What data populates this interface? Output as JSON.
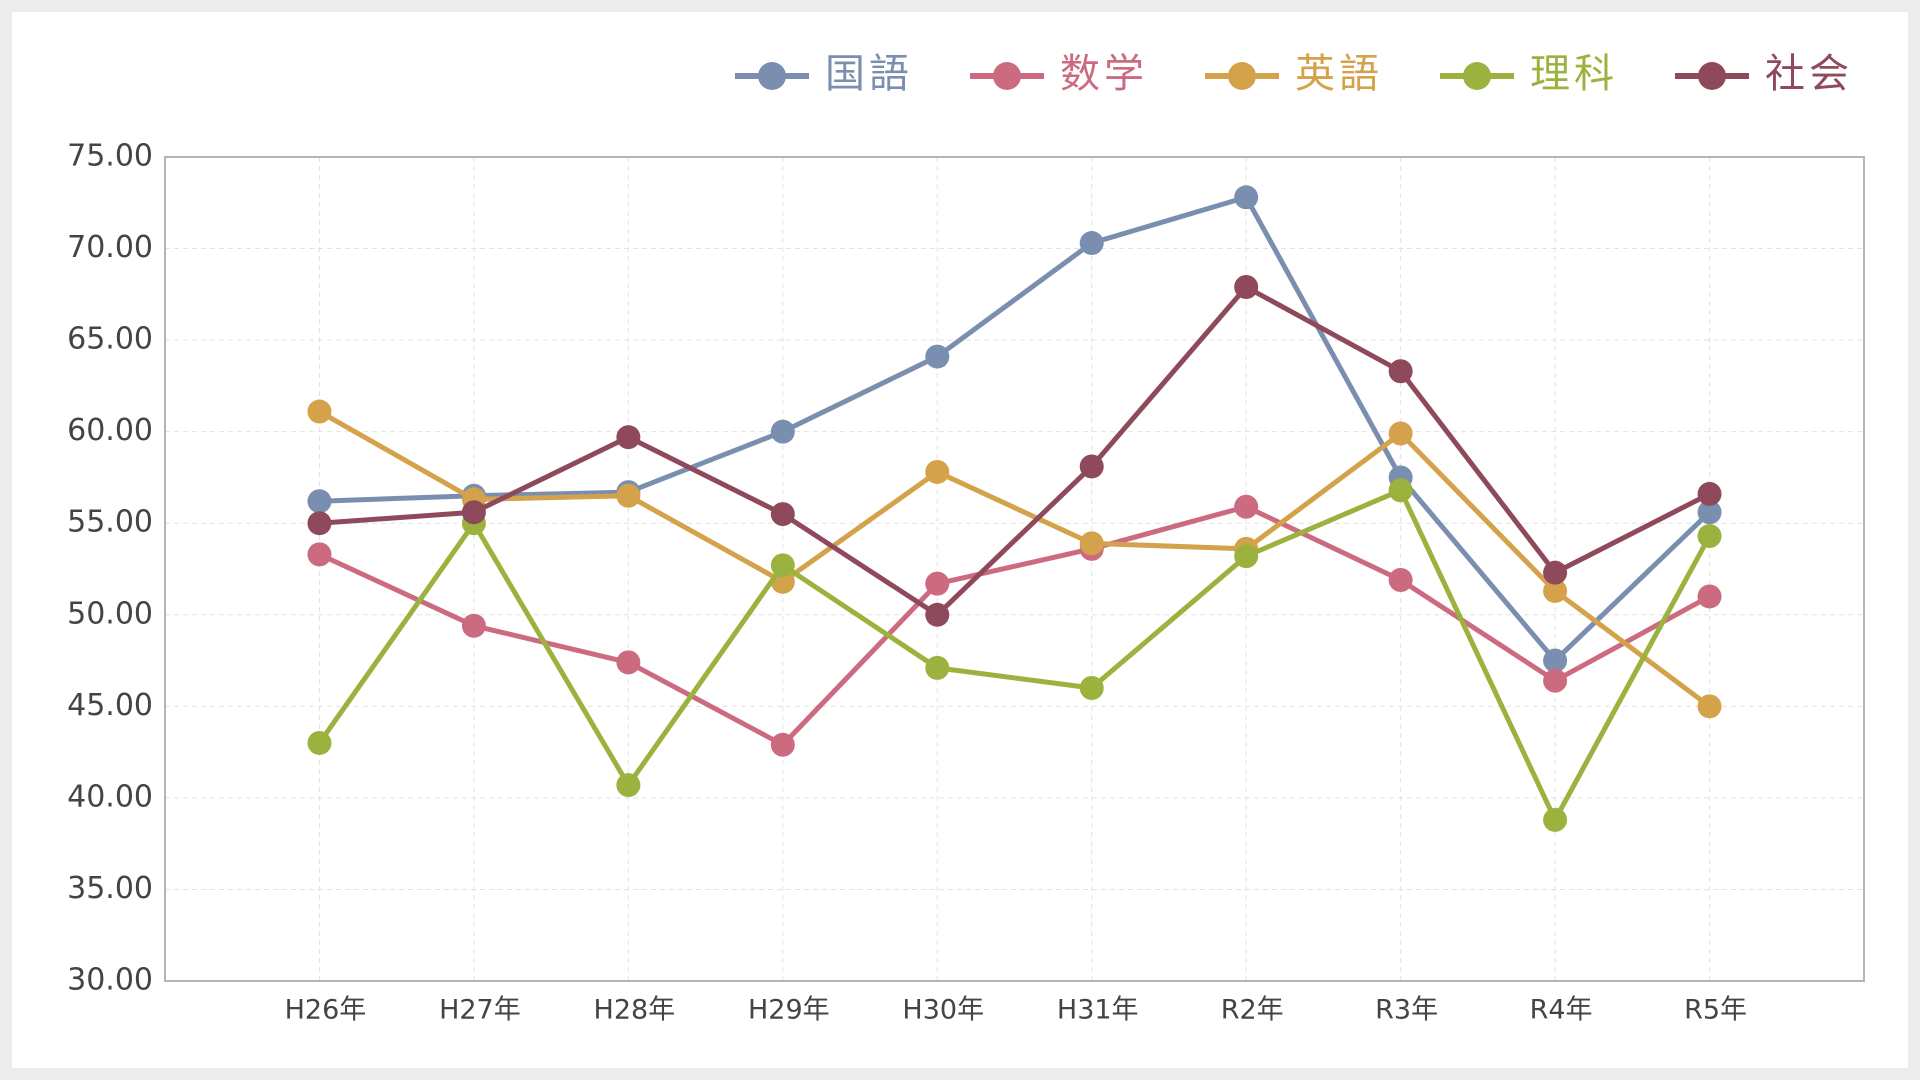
{
  "chart_data": {
    "type": "line",
    "categories": [
      "H26年",
      "H27年",
      "H28年",
      "H29年",
      "H30年",
      "H31年",
      "R2年",
      "R3年",
      "R4年",
      "R5年"
    ],
    "series": [
      {
        "name": "国語",
        "color": "#7a8fb0",
        "values": [
          56.2,
          56.5,
          56.7,
          60.0,
          64.1,
          70.3,
          72.8,
          57.5,
          47.5,
          55.6
        ]
      },
      {
        "name": "数学",
        "color": "#cc6b80",
        "values": [
          53.3,
          49.4,
          47.4,
          42.9,
          51.7,
          53.6,
          55.9,
          51.9,
          46.4,
          51.0
        ]
      },
      {
        "name": "英語",
        "color": "#d4a24a",
        "values": [
          61.1,
          56.3,
          56.5,
          51.8,
          57.8,
          53.9,
          53.6,
          59.9,
          51.3,
          45.0
        ]
      },
      {
        "name": "理科",
        "color": "#9bb33e",
        "values": [
          43.0,
          55.0,
          40.7,
          52.7,
          47.1,
          46.0,
          53.2,
          56.8,
          38.8,
          54.3
        ]
      },
      {
        "name": "社会",
        "color": "#8e4a5a",
        "values": [
          55.0,
          55.6,
          59.7,
          55.5,
          50.0,
          58.1,
          67.9,
          63.3,
          52.3,
          56.6
        ]
      }
    ],
    "ylim": [
      30,
      75
    ],
    "yticks": [
      {
        "value": 30,
        "label": "30.00"
      },
      {
        "value": 35,
        "label": "35.00"
      },
      {
        "value": 40,
        "label": "40.00"
      },
      {
        "value": 45,
        "label": "45.00"
      },
      {
        "value": 50,
        "label": "50.00"
      },
      {
        "value": 55,
        "label": "55.00"
      },
      {
        "value": 60,
        "label": "60.00"
      },
      {
        "value": 65,
        "label": "65.00"
      },
      {
        "value": 70,
        "label": "70.00"
      },
      {
        "value": 75,
        "label": "75.00"
      }
    ],
    "grid": true,
    "legend": "top-right"
  }
}
